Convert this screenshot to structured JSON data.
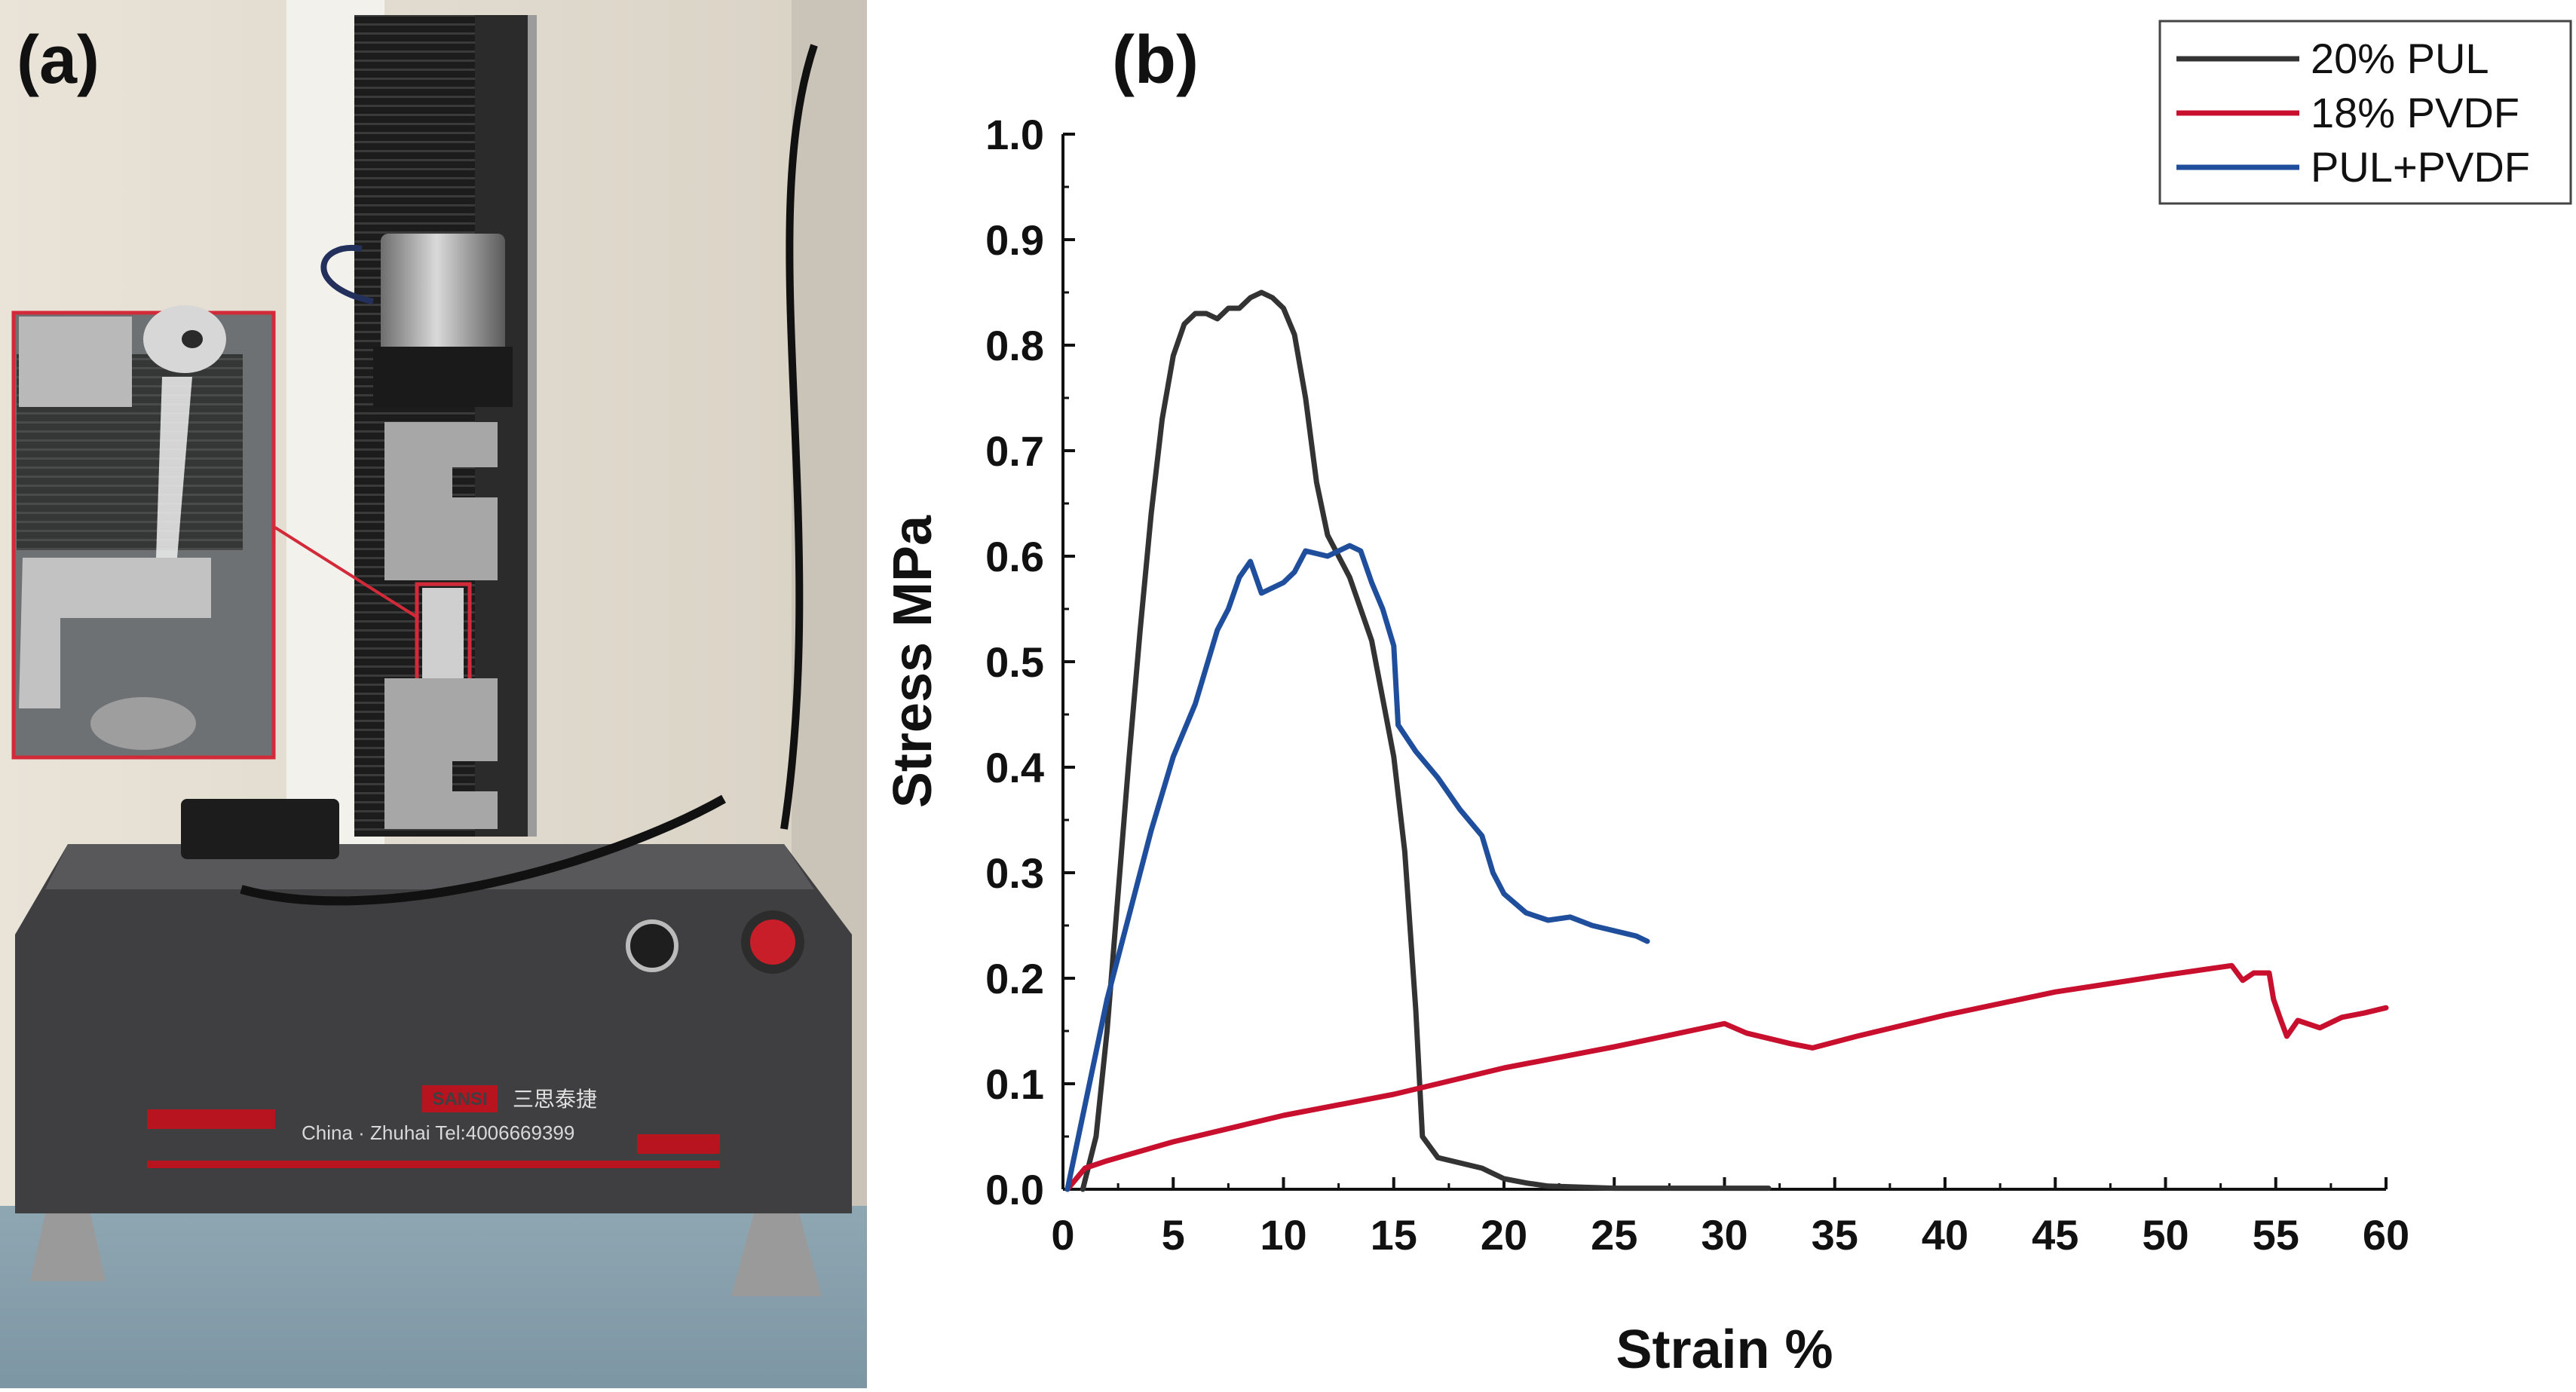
{
  "panel_a": {
    "label": "(a)",
    "machine_text": {
      "brand_badge": "SANSI",
      "brand_cn": "三思泰捷",
      "contact": "China · Zhuhai  Tel:4006669399"
    }
  },
  "panel_b": {
    "label": "(b)"
  },
  "colors": {
    "pul": "#333333",
    "pvdf": "#c8102e",
    "mix": "#1f4e9c"
  },
  "chart_data": {
    "type": "line",
    "title": "",
    "xlabel": "Strain %",
    "ylabel": "Stress MPa",
    "xlim": [
      0,
      60
    ],
    "ylim": [
      0,
      1.0
    ],
    "xticks": [
      "0",
      "5",
      "10",
      "15",
      "20",
      "25",
      "30",
      "35",
      "40",
      "45",
      "50",
      "55",
      "60"
    ],
    "yticks": [
      "0.0",
      "0.1",
      "0.2",
      "0.3",
      "0.4",
      "0.5",
      "0.6",
      "0.7",
      "0.8",
      "0.9",
      "1.0"
    ],
    "grid": false,
    "legend_position": "top-right",
    "series": [
      {
        "name": "20% PUL",
        "color": "#333333",
        "points": [
          [
            0.9,
            0
          ],
          [
            1.5,
            0.05
          ],
          [
            2,
            0.15
          ],
          [
            2.5,
            0.28
          ],
          [
            3,
            0.41
          ],
          [
            3.5,
            0.53
          ],
          [
            4,
            0.64
          ],
          [
            4.5,
            0.73
          ],
          [
            5,
            0.79
          ],
          [
            5.5,
            0.82
          ],
          [
            6,
            0.83
          ],
          [
            6.5,
            0.83
          ],
          [
            7,
            0.825
          ],
          [
            7.5,
            0.835
          ],
          [
            8,
            0.835
          ],
          [
            8.5,
            0.845
          ],
          [
            9,
            0.85
          ],
          [
            9.5,
            0.845
          ],
          [
            10,
            0.835
          ],
          [
            10.5,
            0.81
          ],
          [
            11,
            0.75
          ],
          [
            11.5,
            0.67
          ],
          [
            12,
            0.62
          ],
          [
            13,
            0.58
          ],
          [
            14,
            0.52
          ],
          [
            15,
            0.41
          ],
          [
            15.5,
            0.32
          ],
          [
            16,
            0.17
          ],
          [
            16.3,
            0.05
          ],
          [
            17,
            0.03
          ],
          [
            18,
            0.025
          ],
          [
            19,
            0.02
          ],
          [
            20,
            0.01
          ],
          [
            21,
            0.006
          ],
          [
            22,
            0.003
          ],
          [
            25,
            0.001
          ],
          [
            32,
            0.001
          ]
        ]
      },
      {
        "name": "18% PVDF",
        "color": "#c8102e",
        "points": [
          [
            0.2,
            0
          ],
          [
            1,
            0.02
          ],
          [
            2,
            0.027
          ],
          [
            3,
            0.033
          ],
          [
            5,
            0.045
          ],
          [
            10,
            0.07
          ],
          [
            15,
            0.09
          ],
          [
            20,
            0.115
          ],
          [
            25,
            0.135
          ],
          [
            30,
            0.157
          ],
          [
            31,
            0.148
          ],
          [
            33,
            0.138
          ],
          [
            34,
            0.134
          ],
          [
            36,
            0.145
          ],
          [
            40,
            0.165
          ],
          [
            45,
            0.187
          ],
          [
            50,
            0.203
          ],
          [
            53,
            0.212
          ],
          [
            53.5,
            0.198
          ],
          [
            54,
            0.205
          ],
          [
            54.7,
            0.205
          ],
          [
            54.9,
            0.18
          ],
          [
            55.2,
            0.162
          ],
          [
            55.5,
            0.145
          ],
          [
            56,
            0.16
          ],
          [
            57,
            0.153
          ],
          [
            58,
            0.163
          ],
          [
            59,
            0.167
          ],
          [
            60,
            0.172
          ]
        ]
      },
      {
        "name": "PUL+PVDF",
        "color": "#1f4e9c",
        "points": [
          [
            0.2,
            0
          ],
          [
            1,
            0.08
          ],
          [
            2,
            0.18
          ],
          [
            3,
            0.26
          ],
          [
            4,
            0.34
          ],
          [
            5,
            0.41
          ],
          [
            6,
            0.46
          ],
          [
            7,
            0.53
          ],
          [
            7.5,
            0.55
          ],
          [
            8,
            0.58
          ],
          [
            8.5,
            0.595
          ],
          [
            9,
            0.565
          ],
          [
            9.5,
            0.57
          ],
          [
            10,
            0.575
          ],
          [
            10.5,
            0.585
          ],
          [
            11,
            0.605
          ],
          [
            12,
            0.6
          ],
          [
            13,
            0.61
          ],
          [
            13.5,
            0.605
          ],
          [
            14,
            0.575
          ],
          [
            14.5,
            0.55
          ],
          [
            15,
            0.515
          ],
          [
            15.2,
            0.44
          ],
          [
            16,
            0.415
          ],
          [
            17,
            0.39
          ],
          [
            18,
            0.36
          ],
          [
            19,
            0.335
          ],
          [
            19.5,
            0.3
          ],
          [
            20,
            0.28
          ],
          [
            21,
            0.262
          ],
          [
            22,
            0.255
          ],
          [
            23,
            0.258
          ],
          [
            24,
            0.25
          ],
          [
            25,
            0.245
          ],
          [
            26,
            0.24
          ],
          [
            26.5,
            0.235
          ]
        ]
      }
    ]
  }
}
